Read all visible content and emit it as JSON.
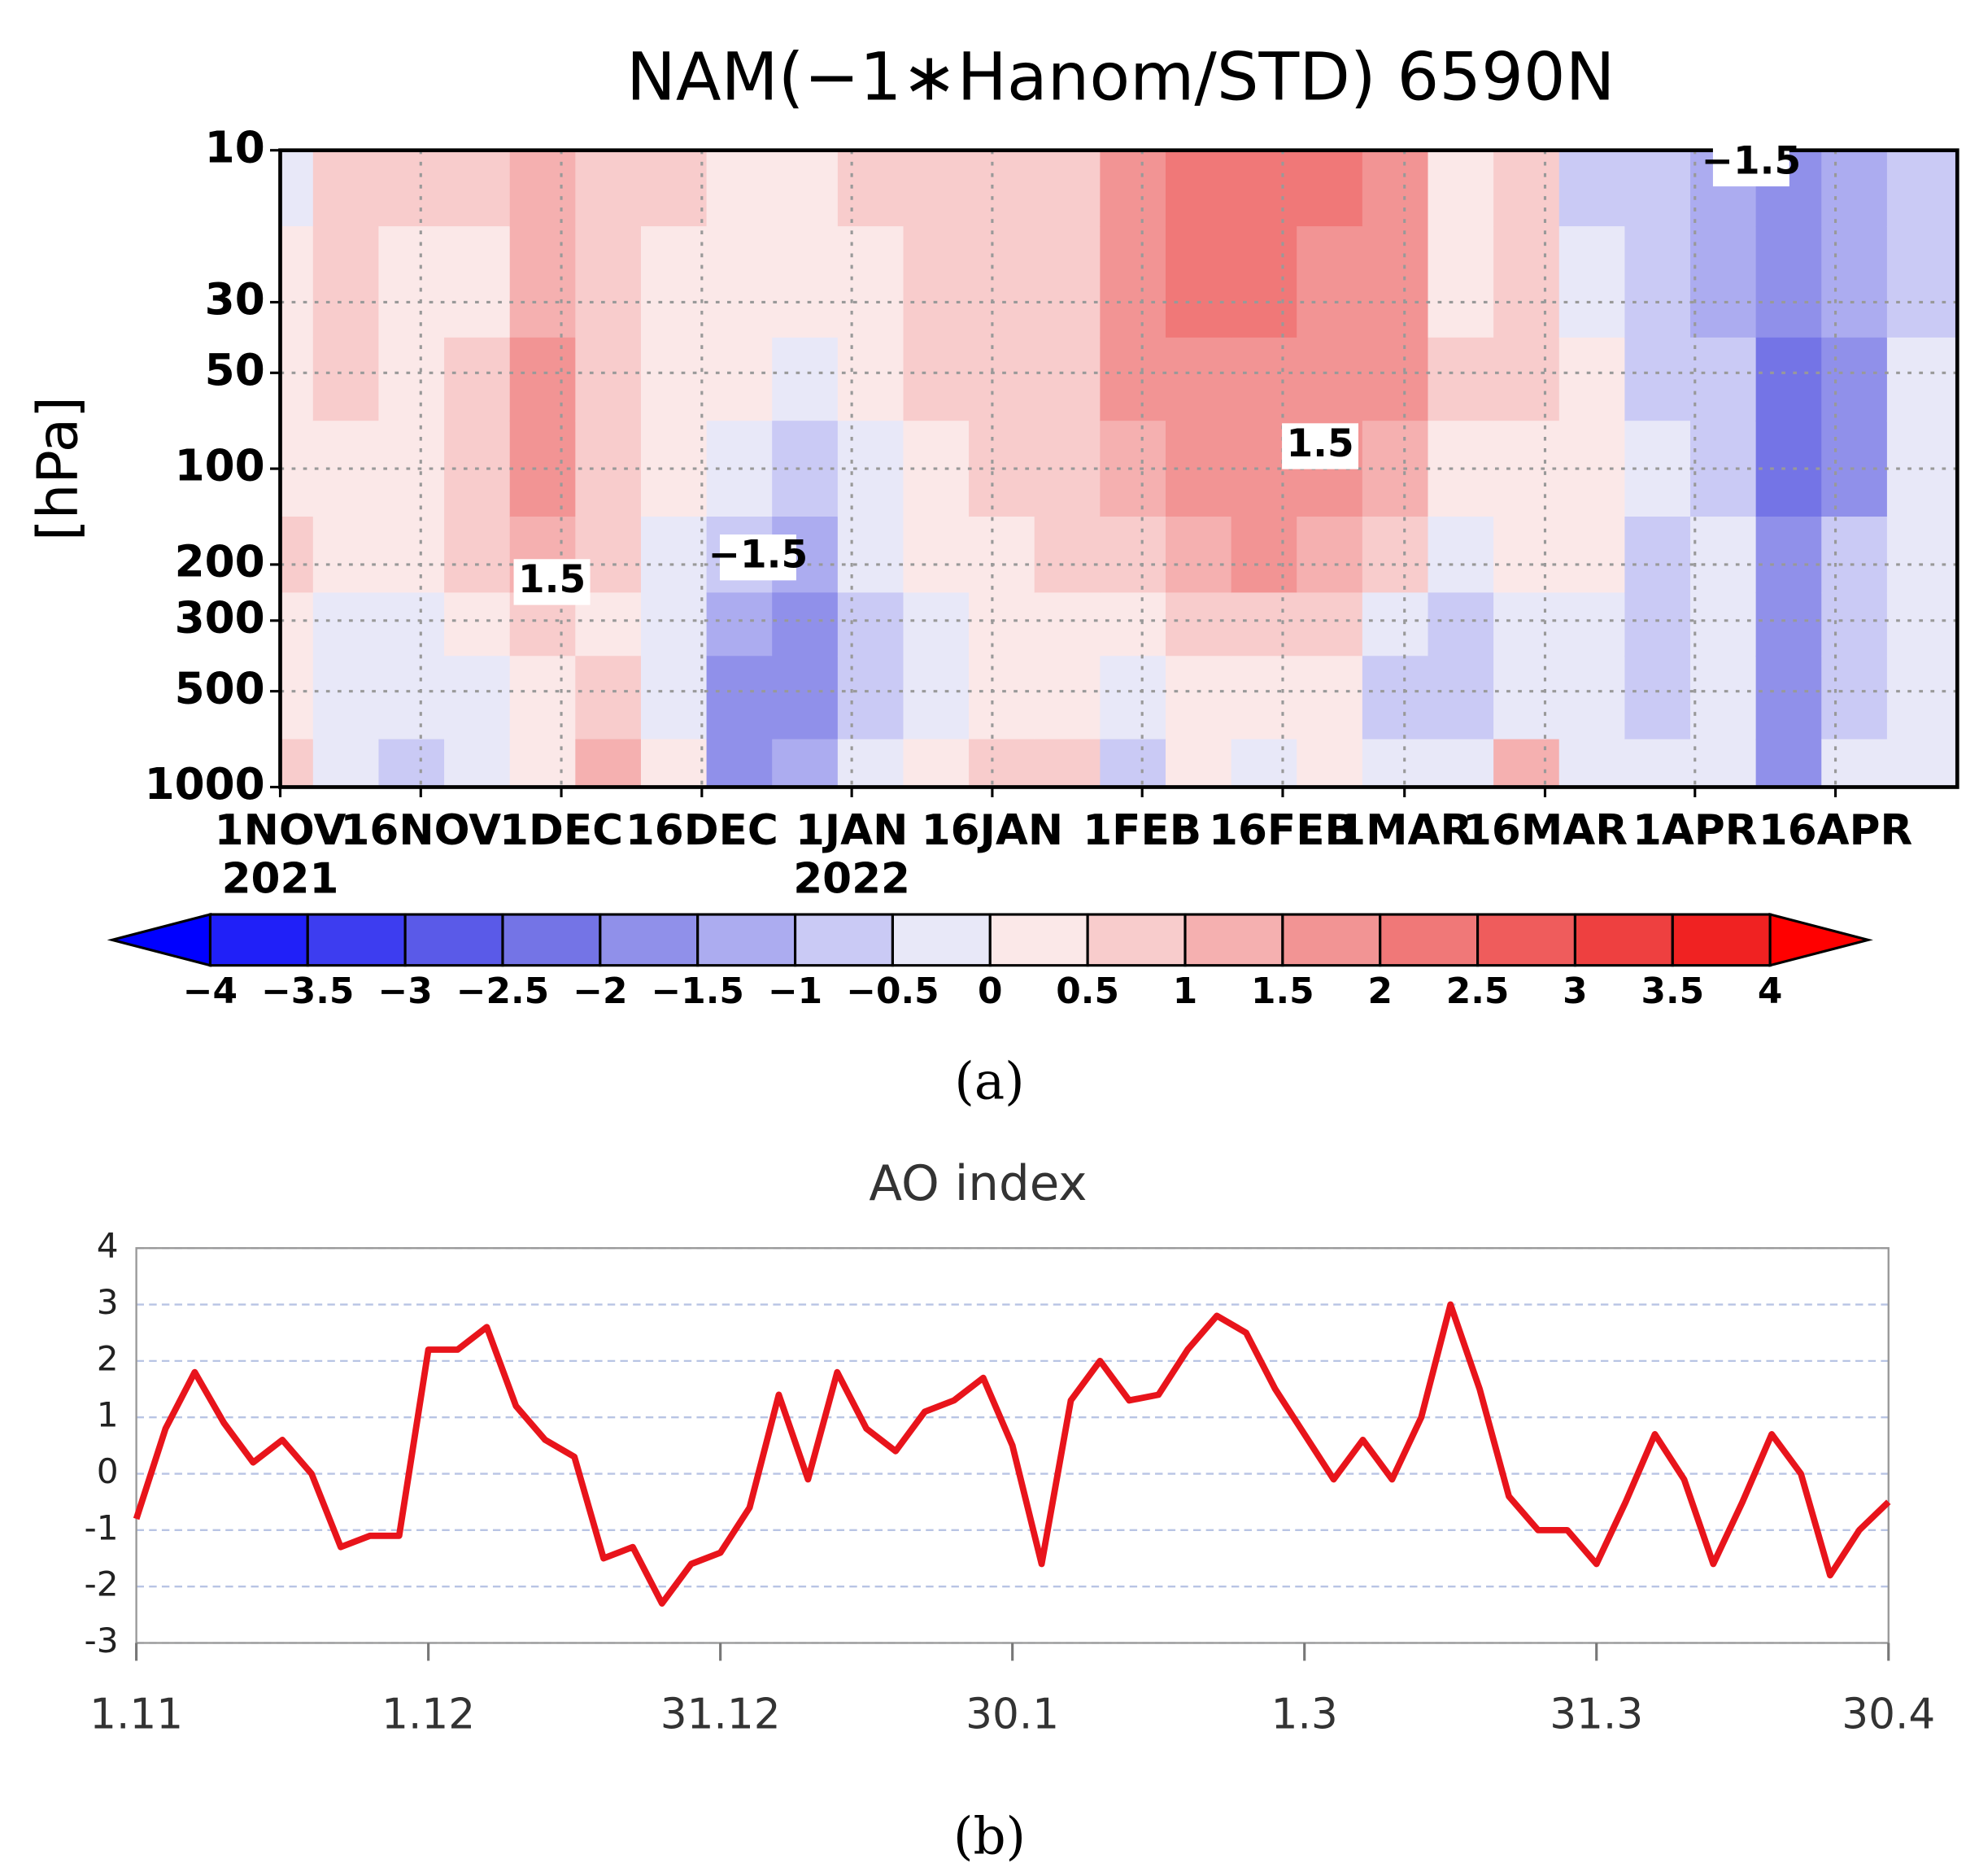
{
  "chart_data": [
    {
      "type": "heatmap",
      "title": "NAM(−1∗Hanom/STD)  6590N",
      "ylabel": "[hPa]",
      "panel_label": "(a)",
      "x": [
        "2021-11-01",
        "2021-11-08",
        "2021-11-15",
        "2021-11-22",
        "2021-11-29",
        "2021-12-06",
        "2021-12-13",
        "2021-12-20",
        "2021-12-27",
        "2022-01-03",
        "2022-01-10",
        "2022-01-17",
        "2022-01-24",
        "2022-01-31",
        "2022-02-07",
        "2022-02-14",
        "2022-02-21",
        "2022-02-28",
        "2022-03-07",
        "2022-03-14",
        "2022-03-21",
        "2022-03-28",
        "2022-04-04",
        "2022-04-11",
        "2022-04-18",
        "2022-04-25"
      ],
      "y": [
        10,
        30,
        50,
        100,
        200,
        300,
        500,
        1000
      ],
      "z": [
        [
          -0.3,
          0.2,
          0.3,
          0.3,
          0.5,
          0.2,
          0.3,
          0.8
        ],
        [
          0.5,
          0.6,
          0.5,
          0.4,
          0.2,
          -0.2,
          -0.3,
          -0.2
        ],
        [
          0.6,
          0.4,
          0.2,
          0.2,
          0,
          -0.3,
          -0.5,
          -0.8
        ],
        [
          0.5,
          0.4,
          0.5,
          0.6,
          0.5,
          0.2,
          -0.2,
          -0.4
        ],
        [
          1.0,
          1.2,
          1.5,
          1.5,
          1.2,
          0.6,
          0.3,
          0.3
        ],
        [
          0.8,
          0.6,
          0.6,
          0.8,
          0.6,
          0.4,
          0.6,
          1.2
        ],
        [
          0.5,
          0.4,
          0.2,
          0,
          -0.3,
          -0.4,
          -0.3,
          0.2
        ],
        [
          0.4,
          0.3,
          0,
          -0.5,
          -1.0,
          -1.5,
          -1.8,
          -1.6
        ],
        [
          0.3,
          0.3,
          -0.2,
          -0.8,
          -1.4,
          -1.8,
          -1.6,
          -1.3
        ],
        [
          0.6,
          0.4,
          0.2,
          -0.1,
          -0.3,
          -0.6,
          -0.8,
          -0.5
        ],
        [
          0.8,
          0.6,
          0.5,
          0.2,
          0,
          -0.2,
          -0.3,
          0.2
        ],
        [
          0.6,
          0.8,
          0.6,
          0.5,
          0.3,
          0.2,
          0.3,
          0.5
        ],
        [
          0.8,
          0.8,
          0.9,
          0.7,
          0.5,
          0.3,
          0.4,
          0.6
        ],
        [
          1.8,
          1.8,
          1.6,
          1.2,
          0.8,
          0.3,
          -0.3,
          -0.8
        ],
        [
          2.0,
          2.0,
          1.8,
          1.5,
          1.2,
          0.5,
          0,
          0.2
        ],
        [
          2.2,
          2.0,
          1.8,
          1.6,
          1.5,
          0.8,
          0.2,
          -0.2
        ],
        [
          2.0,
          1.8,
          1.8,
          1.6,
          1.2,
          0.6,
          0.3,
          0.4
        ],
        [
          1.6,
          1.6,
          1.5,
          1.3,
          0.6,
          -0.2,
          -0.6,
          -0.4
        ],
        [
          0.3,
          0.4,
          0.5,
          0.3,
          -0.2,
          -0.6,
          -0.8,
          -0.3
        ],
        [
          0.8,
          0.6,
          0.5,
          0.4,
          0,
          -0.3,
          -0.2,
          1.0
        ],
        [
          -0.6,
          -0.3,
          0,
          0.2,
          0.1,
          -0.3,
          -0.5,
          -0.5
        ],
        [
          -1.0,
          -0.8,
          -0.6,
          -0.5,
          -0.6,
          -1.0,
          -0.8,
          -0.5
        ],
        [
          -1.2,
          -1.2,
          -1.0,
          -0.8,
          -0.5,
          -0.4,
          -0.5,
          -0.5
        ],
        [
          -1.8,
          -2.0,
          -2.2,
          -2.2,
          -1.8,
          -1.6,
          -1.6,
          -1.6
        ],
        [
          -1.2,
          -1.4,
          -1.8,
          -1.6,
          -1.0,
          -0.6,
          -0.6,
          -0.5
        ],
        [
          -0.8,
          -0.6,
          -0.5,
          -0.4,
          -0.2,
          -0.2,
          -0.3,
          -0.3
        ]
      ],
      "xlim": [
        "2021-11-01",
        "2022-04-29"
      ],
      "xticks": [
        {
          "value": "2021-11-01",
          "label": "1NOV"
        },
        {
          "value": "2021-11-16",
          "label": "16NOV"
        },
        {
          "value": "2021-12-01",
          "label": "1DEC"
        },
        {
          "value": "2021-12-16",
          "label": "16DEC"
        },
        {
          "value": "2022-01-01",
          "label": "1JAN"
        },
        {
          "value": "2022-01-16",
          "label": "16JAN"
        },
        {
          "value": "2022-02-01",
          "label": "1FEB"
        },
        {
          "value": "2022-02-16",
          "label": "16FEB"
        },
        {
          "value": "2022-03-01",
          "label": "1MAR"
        },
        {
          "value": "2022-03-16",
          "label": "16MAR"
        },
        {
          "value": "2022-04-01",
          "label": "1APR"
        },
        {
          "value": "2022-04-16",
          "label": "16APR"
        }
      ],
      "year_labels": [
        {
          "value": "2021-11-01",
          "label": "2021"
        },
        {
          "value": "2022-01-01",
          "label": "2022"
        }
      ],
      "ylim": [
        1000,
        10
      ],
      "yticks": [
        10,
        30,
        50,
        100,
        200,
        300,
        500,
        1000
      ],
      "log_y": true,
      "grid": true,
      "annotations": [
        {
          "text": "1.5",
          "x": "2021-11-30",
          "y": 227
        },
        {
          "text": "−1.5",
          "x": "2021-12-22",
          "y": 190
        },
        {
          "text": "1.5",
          "x": "2022-02-20",
          "y": 85
        },
        {
          "text": "−1.5",
          "x": "2022-04-07",
          "y": 11
        }
      ],
      "colorbar": {
        "levels": [
          {
            "value": -4,
            "label": "−4"
          },
          {
            "value": -3.5,
            "label": "−3.5"
          },
          {
            "value": -3,
            "label": "−3"
          },
          {
            "value": -2.5,
            "label": "−2.5"
          },
          {
            "value": -2,
            "label": "−2"
          },
          {
            "value": -1.5,
            "label": "−1.5"
          },
          {
            "value": -1,
            "label": "−1"
          },
          {
            "value": -0.5,
            "label": "−0.5"
          },
          0,
          0.5,
          1,
          1.5,
          2,
          2.5,
          3,
          3.5,
          4
        ],
        "colors": [
          "#0000ff",
          "#2020f8",
          "#3d3df0",
          "#5a5ae8",
          "#7474e6",
          "#9090ea",
          "#acacf0",
          "#cacaf5",
          "#e8e8f8",
          "#fbe8e8",
          "#f8cccc",
          "#f5b0b0",
          "#f29494",
          "#f07878",
          "#ef5c5c",
          "#ee4040",
          "#f02222",
          "#ff0000"
        ]
      }
    },
    {
      "type": "line",
      "title": "AO index",
      "panel_label": "(b)",
      "x": [
        "2021-11-01",
        "2021-11-04",
        "2021-11-07",
        "2021-11-10",
        "2021-11-13",
        "2021-11-16",
        "2021-11-19",
        "2021-11-22",
        "2021-11-25",
        "2021-11-28",
        "2021-12-01",
        "2021-12-04",
        "2021-12-07",
        "2021-12-10",
        "2021-12-13",
        "2021-12-16",
        "2021-12-19",
        "2021-12-22",
        "2021-12-25",
        "2021-12-28",
        "2021-12-31",
        "2022-01-03",
        "2022-01-06",
        "2022-01-09",
        "2022-01-12",
        "2022-01-15",
        "2022-01-18",
        "2022-01-21",
        "2022-01-24",
        "2022-01-27",
        "2022-01-30",
        "2022-02-02",
        "2022-02-05",
        "2022-02-08",
        "2022-02-11",
        "2022-02-14",
        "2022-02-17",
        "2022-02-20",
        "2022-02-23",
        "2022-02-26",
        "2022-03-01",
        "2022-03-04",
        "2022-03-07",
        "2022-03-10",
        "2022-03-13",
        "2022-03-16",
        "2022-03-19",
        "2022-03-22",
        "2022-03-25",
        "2022-03-28",
        "2022-03-31",
        "2022-04-03",
        "2022-04-06",
        "2022-04-09",
        "2022-04-12",
        "2022-04-15",
        "2022-04-18",
        "2022-04-21",
        "2022-04-24",
        "2022-04-27",
        "2022-04-30"
      ],
      "values": [
        -0.8,
        0.8,
        1.8,
        0.9,
        0.2,
        0.6,
        0.0,
        -1.3,
        -1.1,
        -1.1,
        2.2,
        2.2,
        2.6,
        1.2,
        0.6,
        0.3,
        -1.5,
        -1.3,
        -2.3,
        -1.6,
        -1.4,
        -0.6,
        1.4,
        -0.1,
        1.8,
        0.8,
        0.4,
        1.1,
        1.3,
        1.7,
        0.5,
        -1.6,
        1.3,
        2.0,
        1.3,
        1.4,
        2.2,
        2.8,
        2.5,
        1.5,
        0.7,
        -0.1,
        0.6,
        -0.1,
        1.0,
        3.0,
        1.5,
        -0.4,
        -1.0,
        -1.0,
        -1.6,
        -0.5,
        0.7,
        -0.1,
        -1.6,
        -0.5,
        0.7,
        0.0,
        -1.8,
        -1.0,
        -0.5
      ],
      "color": "#e8141b",
      "xlim": [
        "2021-11-01",
        "2022-04-30"
      ],
      "xticks": [
        {
          "value": "2021-11-01",
          "label": "1.11"
        },
        {
          "value": "2021-12-01",
          "label": "1.12"
        },
        {
          "value": "2021-12-31",
          "label": "31.12"
        },
        {
          "value": "2022-01-30",
          "label": "30.1"
        },
        {
          "value": "2022-03-01",
          "label": "1.3"
        },
        {
          "value": "2022-03-31",
          "label": "31.3"
        },
        {
          "value": "2022-04-30",
          "label": "30.4"
        }
      ],
      "ylim": [
        -3,
        4
      ],
      "yticks": [
        -3,
        -2,
        -1,
        0,
        1,
        2,
        3,
        4
      ],
      "grid": true
    }
  ]
}
